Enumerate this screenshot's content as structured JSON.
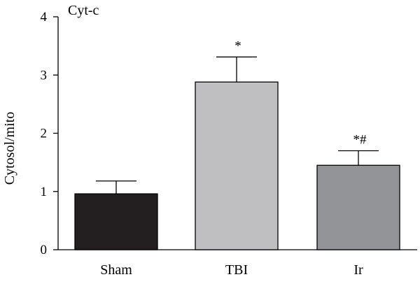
{
  "chart_data": {
    "type": "bar",
    "title": "Cyt-c",
    "xlabel": "",
    "ylabel": "Cytosol/mito",
    "ylim": [
      0,
      4
    ],
    "yticks": [
      0,
      1,
      2,
      3,
      4
    ],
    "categories": [
      "Sham",
      "TBI",
      "Ir"
    ],
    "values": [
      0.96,
      2.88,
      1.45
    ],
    "errors": [
      0.22,
      0.43,
      0.25
    ],
    "annotations": [
      "",
      "*",
      "*#"
    ],
    "colors": [
      "#231f20",
      "#bfbfc1",
      "#929497"
    ],
    "grid": false,
    "legend": "none"
  }
}
